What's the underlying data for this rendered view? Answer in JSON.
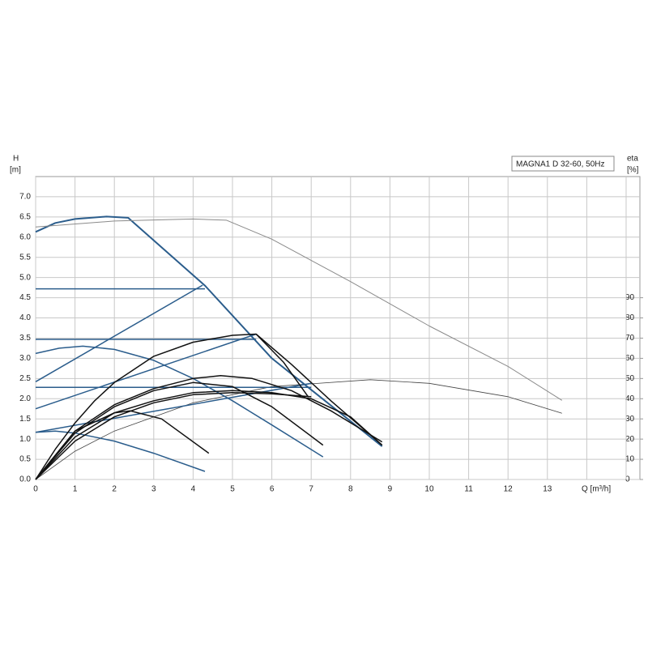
{
  "chart_data": {
    "type": "line",
    "title": "MAGNA1 D 32-60, 50Hz",
    "y_label": "H",
    "y_unit": "[m]",
    "y2_label": "eta",
    "y2_unit": "[%]",
    "x_label": "Q [m³/h]",
    "xlim": [
      0,
      15.35
    ],
    "xticks": [
      0,
      1,
      2,
      3,
      4,
      5,
      6,
      7,
      8,
      9,
      10,
      11,
      12,
      13
    ],
    "xgrid": [
      14,
      15
    ],
    "ylim": [
      0,
      7.5
    ],
    "yticks": [
      {
        "value": 0,
        "label": "0.0"
      },
      0.5,
      {
        "value": 1,
        "label": "1.0"
      },
      1.5,
      {
        "value": 2,
        "label": "2.0"
      },
      2.5,
      {
        "value": 3,
        "label": "3.0"
      },
      3.5,
      {
        "value": 4,
        "label": "4.0"
      },
      4.5,
      {
        "value": 5,
        "label": "5.0"
      },
      5.5,
      {
        "value": 6,
        "label": "6.0"
      },
      6.5,
      {
        "value": 7,
        "label": "7.0"
      }
    ],
    "y2lim": [
      0,
      150
    ],
    "y2ticks": [
      0,
      10,
      20,
      30,
      40,
      50,
      60,
      70,
      80,
      90
    ],
    "grid": true,
    "series": [
      {
        "color": "#2b5d8c",
        "width": 2,
        "x": [
          0,
          0.5,
          1,
          1.8,
          2.35,
          4.3,
          6,
          8.8
        ],
        "values": [
          6.13,
          6.35,
          6.45,
          6.51,
          6.48,
          4.8,
          3.0,
          0.82
        ]
      },
      {
        "color": "#8a8a8a",
        "width": 1,
        "x": [
          0,
          2,
          4,
          4.85,
          6,
          8,
          10,
          12,
          13.37
        ],
        "values": [
          6.25,
          6.4,
          6.45,
          6.42,
          5.95,
          4.9,
          3.8,
          2.8,
          1.96
        ]
      },
      {
        "color": "#444444",
        "width": 0.8,
        "x": [
          0,
          1,
          2,
          4,
          6,
          8.5,
          10,
          12,
          13.37
        ],
        "values": [
          0,
          0.7,
          1.2,
          1.9,
          2.3,
          2.47,
          2.38,
          2.05,
          1.64
        ]
      },
      {
        "color": "#2b5d8c",
        "width": 1.5,
        "x": [
          0,
          4.3
        ],
        "values": [
          4.72,
          4.72
        ]
      },
      {
        "color": "#2b5d8c",
        "width": 1.5,
        "x": [
          0,
          5.6
        ],
        "values": [
          3.47,
          3.47
        ]
      },
      {
        "color": "#2b5d8c",
        "width": 1.5,
        "x": [
          0,
          7.0
        ],
        "values": [
          2.28,
          2.28
        ]
      },
      {
        "color": "#2b5d8c",
        "width": 1.5,
        "x": [
          0,
          4.24
        ],
        "values": [
          2.42,
          4.81
        ]
      },
      {
        "color": "#2b5d8c",
        "width": 1.5,
        "x": [
          0,
          5.6
        ],
        "values": [
          1.75,
          3.6
        ]
      },
      {
        "color": "#2b5d8c",
        "width": 1.5,
        "x": [
          0,
          7.0
        ],
        "values": [
          1.17,
          2.38
        ]
      },
      {
        "color": "#2b5d8c",
        "width": 1.5,
        "x": [
          0,
          0.6,
          1.2,
          2,
          3,
          4,
          5,
          6,
          7.3
        ],
        "values": [
          3.12,
          3.25,
          3.3,
          3.22,
          2.95,
          2.5,
          1.95,
          1.35,
          0.56
        ]
      },
      {
        "color": "#2b5d8c",
        "width": 1.5,
        "x": [
          0,
          0.5,
          1,
          2,
          3,
          4.3
        ],
        "values": [
          1.17,
          1.2,
          1.15,
          0.95,
          0.65,
          0.2
        ]
      },
      {
        "color": "#111111",
        "width": 1.5,
        "x": [
          0,
          0.5,
          1,
          1.5,
          2,
          3,
          4,
          5,
          5.6,
          6.3,
          6.93
        ],
        "values": [
          0,
          0.75,
          1.4,
          1.95,
          2.4,
          3.05,
          3.4,
          3.57,
          3.6,
          2.9,
          2.04
        ]
      },
      {
        "color": "#111111",
        "width": 1.5,
        "x": [
          0,
          1,
          2,
          3,
          4,
          4.7,
          5.5,
          6.5,
          7.5,
          8.8
        ],
        "values": [
          0,
          1.2,
          1.85,
          2.25,
          2.5,
          2.57,
          2.5,
          2.2,
          1.7,
          0.93
        ]
      },
      {
        "color": "#111111",
        "width": 1.5,
        "x": [
          0,
          1,
          2,
          3,
          4,
          5,
          6,
          7.3
        ],
        "values": [
          0,
          1.15,
          1.8,
          2.2,
          2.4,
          2.3,
          1.8,
          0.85
        ]
      },
      {
        "color": "#111111",
        "width": 1.5,
        "x": [
          0,
          1,
          2,
          3,
          4,
          5,
          6,
          7,
          8,
          8.8
        ],
        "values": [
          0,
          1.05,
          1.65,
          1.95,
          2.15,
          2.2,
          2.15,
          2.0,
          1.55,
          0.85
        ]
      },
      {
        "color": "#111111",
        "width": 1.5,
        "x": [
          0,
          1,
          2,
          2.4,
          3.2,
          4.4
        ],
        "values": [
          0,
          1.2,
          1.65,
          1.7,
          1.5,
          0.65
        ]
      },
      {
        "color": "#111111",
        "width": 1.5,
        "x": [
          0,
          1,
          2,
          3,
          4,
          5,
          6,
          7
        ],
        "values": [
          0,
          0.95,
          1.55,
          1.9,
          2.1,
          2.15,
          2.12,
          2.05
        ]
      },
      {
        "color": "#111111",
        "width": 1.5,
        "x": [
          5.6,
          6.5,
          7.5,
          8.8
        ],
        "values": [
          3.6,
          2.85,
          1.95,
          0.85
        ]
      }
    ]
  }
}
